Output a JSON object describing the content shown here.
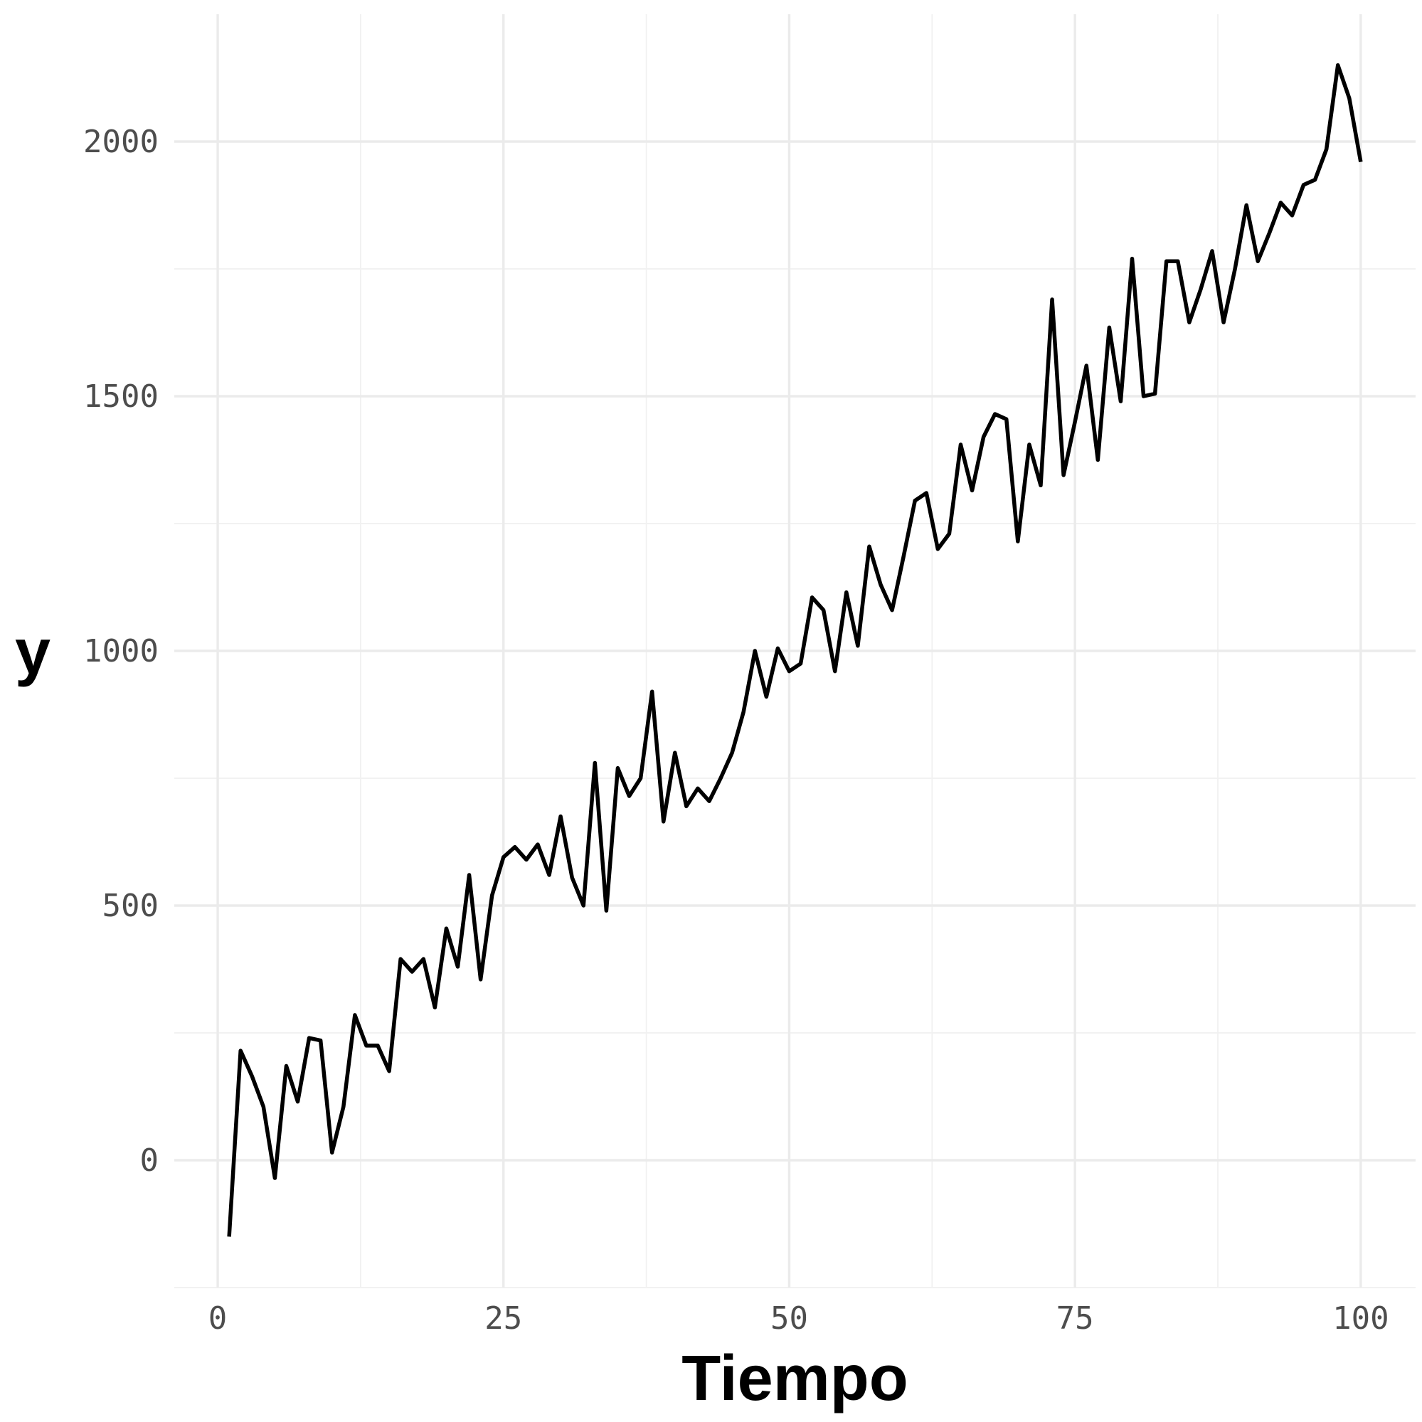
{
  "chart_data": {
    "type": "line",
    "title": "",
    "xlabel": "Tiempo",
    "ylabel": "y",
    "xlim": [
      -3.8,
      104.8
    ],
    "ylim": [
      -250,
      2250
    ],
    "x_ticks": [
      0,
      25,
      50,
      75,
      100
    ],
    "x_tick_labels": [
      "0",
      "25",
      "50",
      "75",
      "100"
    ],
    "y_ticks": [
      0,
      500,
      1000,
      1500,
      2000
    ],
    "y_tick_labels": [
      "0",
      "500",
      "1000",
      "1500",
      "2000"
    ],
    "x_minor_ticks": [
      12.5,
      37.5,
      62.5,
      87.5
    ],
    "y_minor_ticks": [
      -250,
      250,
      750,
      1250,
      1750
    ],
    "grid": true,
    "legend": "none",
    "line_color": "#000000",
    "series": [
      {
        "x": [
          1,
          2,
          3,
          4,
          5,
          6,
          7,
          8,
          9,
          10,
          11,
          12,
          13,
          14,
          15,
          16,
          17,
          18,
          19,
          20,
          21,
          22,
          23,
          24,
          25,
          26,
          27,
          28,
          29,
          30,
          31,
          32,
          33,
          34,
          35,
          36,
          37,
          38,
          39,
          40,
          41,
          42,
          43,
          44,
          45,
          46,
          47,
          48,
          49,
          50,
          51,
          52,
          53,
          54,
          55,
          56,
          57,
          58,
          59,
          60,
          61,
          62,
          63,
          64,
          65,
          66,
          67,
          68,
          69,
          70,
          71,
          72,
          73,
          74,
          75,
          76,
          77,
          78,
          79,
          80,
          81,
          82,
          83,
          84,
          85,
          86,
          87,
          88,
          89,
          90,
          91,
          92,
          93,
          94,
          95,
          96,
          97,
          98,
          99,
          100
        ],
        "y": [
          -150,
          215,
          165,
          105,
          -35,
          185,
          115,
          240,
          235,
          15,
          105,
          285,
          225,
          225,
          175,
          395,
          370,
          395,
          300,
          455,
          380,
          560,
          355,
          520,
          595,
          615,
          590,
          620,
          560,
          675,
          555,
          500,
          780,
          490,
          770,
          715,
          750,
          920,
          665,
          800,
          695,
          730,
          705,
          750,
          800,
          880,
          1000,
          910,
          1005,
          960,
          975,
          1105,
          1080,
          960,
          1115,
          1010,
          1205,
          1130,
          1080,
          1185,
          1295,
          1310,
          1200,
          1230,
          1405,
          1315,
          1420,
          1465,
          1455,
          1215,
          1405,
          1325,
          1690,
          1345,
          1450,
          1560,
          1375,
          1635,
          1490,
          1770,
          1500,
          1505,
          1765,
          1765,
          1645,
          1710,
          1785,
          1645,
          1750,
          1875,
          1765,
          1820,
          1880,
          1855,
          1915,
          1925,
          1985,
          2150,
          2085,
          1960
        ]
      }
    ]
  }
}
